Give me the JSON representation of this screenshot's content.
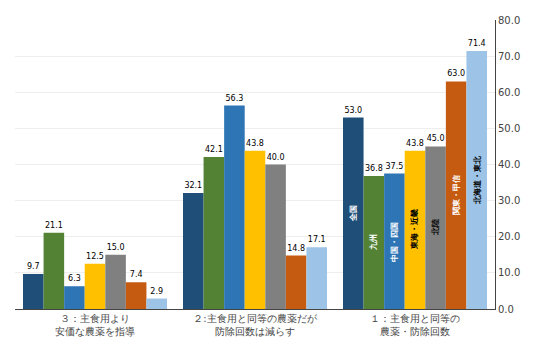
{
  "chart_data": {
    "type": "bar",
    "categories": [
      "３：主食用より\n安価な農薬を指導",
      "２:主食用と同等の農薬だが\n防除回数は減らす",
      "１：主食用と同等の\n農薬・防除回数"
    ],
    "series": [
      {
        "name": "全国",
        "color": "#1f4e79",
        "values": [
          9.7,
          32.1,
          53.0
        ],
        "value_labels": [
          "9.7",
          "32.1",
          "53.0"
        ]
      },
      {
        "name": "九州",
        "color": "#548235",
        "values": [
          21.1,
          42.1,
          36.8
        ],
        "value_labels": [
          "21.1",
          "42.1",
          "36.8"
        ]
      },
      {
        "name": "中国・四国",
        "color": "#2e75b6",
        "values": [
          6.3,
          56.3,
          37.5
        ],
        "value_labels": [
          "6.3",
          "56.3",
          "37.5"
        ]
      },
      {
        "name": "東海・近畿",
        "color": "#ffc000",
        "values": [
          12.5,
          43.8,
          43.8
        ],
        "value_labels": [
          "12.5",
          "43.8",
          "43.8"
        ]
      },
      {
        "name": "北陸",
        "color": "#808080",
        "values": [
          15.0,
          40.0,
          45.0
        ],
        "value_labels": [
          "15.0",
          "40.0",
          "45.0"
        ]
      },
      {
        "name": "関東・甲信",
        "color": "#c55a11",
        "values": [
          7.4,
          14.8,
          63.0
        ],
        "value_labels": [
          "7.4",
          "14.8",
          "63.0"
        ]
      },
      {
        "name": "北海道・東北",
        "color": "#9dc3e6",
        "values": [
          2.9,
          17.1,
          71.4
        ],
        "value_labels": [
          "2.9",
          "17.1",
          "71.4"
        ]
      }
    ],
    "ylim": [
      0,
      80
    ],
    "yticks": [
      {
        "value": 0,
        "label": "0.0"
      },
      {
        "value": 10,
        "label": "10.0"
      },
      {
        "value": 20,
        "label": "20.0"
      },
      {
        "value": 30,
        "label": "30.0"
      },
      {
        "value": 40,
        "label": "40.0"
      },
      {
        "value": 50,
        "label": "50.0"
      },
      {
        "value": 60,
        "label": "60.0"
      },
      {
        "value": 70,
        "label": "70.0"
      },
      {
        "value": 80,
        "label": "80.0"
      }
    ],
    "grid": true,
    "data_labels": true
  }
}
